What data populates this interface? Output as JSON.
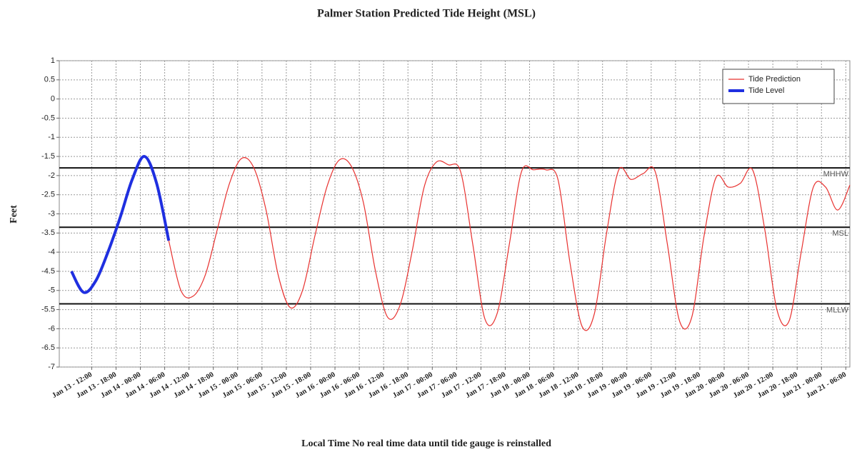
{
  "chart_data": {
    "type": "line",
    "title": "Palmer Station Predicted Tide Height (MSL)",
    "x_label": "Local Time No real time data until tide gauge is reinstalled",
    "y_label": "Feet",
    "x": [
      "Jan 13 - 07:00",
      "Jan 13 - 10:00",
      "Jan 13 - 13:00",
      "Jan 13 - 16:00",
      "Jan 13 - 19:00",
      "Jan 13 - 22:00",
      "Jan 14 - 01:00",
      "Jan 14 - 04:00",
      "Jan 14 - 07:00",
      "Jan 14 - 10:00",
      "Jan 14 - 13:00",
      "Jan 14 - 16:00",
      "Jan 14 - 19:00",
      "Jan 14 - 22:00",
      "Jan 15 - 01:00",
      "Jan 15 - 04:00",
      "Jan 15 - 07:00",
      "Jan 15 - 10:00",
      "Jan 15 - 13:00",
      "Jan 15 - 16:00",
      "Jan 15 - 19:00",
      "Jan 15 - 22:00",
      "Jan 16 - 01:00",
      "Jan 16 - 04:00",
      "Jan 16 - 07:00",
      "Jan 16 - 10:00",
      "Jan 16 - 13:00",
      "Jan 16 - 16:00",
      "Jan 16 - 19:00",
      "Jan 16 - 22:00",
      "Jan 17 - 01:00",
      "Jan 17 - 04:00",
      "Jan 17 - 07:00",
      "Jan 17 - 10:00",
      "Jan 17 - 13:00",
      "Jan 17 - 16:00",
      "Jan 17 - 19:00",
      "Jan 17 - 22:00",
      "Jan 18 - 01:00",
      "Jan 18 - 04:00",
      "Jan 18 - 07:00",
      "Jan 18 - 10:00",
      "Jan 18 - 13:00",
      "Jan 18 - 16:00",
      "Jan 18 - 19:00",
      "Jan 18 - 22:00",
      "Jan 19 - 01:00",
      "Jan 19 - 04:00",
      "Jan 19 - 07:00",
      "Jan 19 - 10:00",
      "Jan 19 - 13:00",
      "Jan 19 - 16:00",
      "Jan 19 - 19:00",
      "Jan 19 - 22:00",
      "Jan 20 - 01:00",
      "Jan 20 - 04:00",
      "Jan 20 - 07:00",
      "Jan 20 - 10:00",
      "Jan 20 - 13:00",
      "Jan 20 - 16:00",
      "Jan 20 - 19:00",
      "Jan 20 - 22:00",
      "Jan 21 - 01:00",
      "Jan 21 - 04:00",
      "Jan 21 - 07:00"
    ],
    "series": [
      {
        "name": "Tide Prediction",
        "color": "#e8312f",
        "width": 1.2,
        "values": [
          null,
          null,
          null,
          null,
          null,
          null,
          null,
          null,
          -3.7,
          -5.0,
          -5.15,
          -4.6,
          -3.4,
          -2.2,
          -1.55,
          -1.8,
          -2.9,
          -4.6,
          -5.45,
          -5.0,
          -3.6,
          -2.3,
          -1.6,
          -1.75,
          -2.7,
          -4.5,
          -5.7,
          -5.4,
          -4.0,
          -2.3,
          -1.65,
          -1.72,
          -1.9,
          -3.8,
          -5.75,
          -5.6,
          -3.8,
          -1.9,
          -1.85,
          -1.85,
          -2.1,
          -4.3,
          -5.95,
          -5.6,
          -3.5,
          -1.85,
          -2.1,
          -1.95,
          -1.9,
          -3.8,
          -5.8,
          -5.7,
          -3.6,
          -2.05,
          -2.3,
          -2.2,
          -1.85,
          -3.4,
          -5.5,
          -5.8,
          -4.0,
          -2.3,
          -2.3,
          -2.9,
          -2.25
        ]
      },
      {
        "name": "Tide Level",
        "color": "#1f2fe0",
        "width": 4,
        "values": [
          -4.5,
          -5.05,
          -4.75,
          -4.0,
          -3.1,
          -2.1,
          -1.5,
          -2.2,
          -3.7,
          null,
          null,
          null,
          null,
          null,
          null,
          null,
          null,
          null,
          null,
          null,
          null,
          null,
          null,
          null,
          null,
          null,
          null,
          null,
          null,
          null,
          null,
          null,
          null,
          null,
          null,
          null,
          null,
          null,
          null,
          null,
          null,
          null,
          null,
          null,
          null,
          null,
          null,
          null,
          null,
          null,
          null,
          null,
          null,
          null,
          null,
          null,
          null,
          null,
          null,
          null,
          null,
          null,
          null,
          null,
          null
        ]
      }
    ],
    "reference_lines": [
      {
        "label": "MHHW",
        "value": -1.8
      },
      {
        "label": "MSL",
        "value": -3.35
      },
      {
        "label": "MLLW",
        "value": -5.35
      }
    ],
    "xlim": [
      "Jan 13 - 04:00",
      "Jan 21 - 07:00"
    ],
    "xticks": [
      "Jan 13 - 12:00",
      "Jan 13 - 18:00",
      "Jan 14 - 00:00",
      "Jan 14 - 06:00",
      "Jan 14 - 12:00",
      "Jan 14 - 18:00",
      "Jan 15 - 00:00",
      "Jan 15 - 06:00",
      "Jan 15 - 12:00",
      "Jan 15 - 18:00",
      "Jan 16 - 00:00",
      "Jan 16 - 06:00",
      "Jan 16 - 12:00",
      "Jan 16 - 18:00",
      "Jan 17 - 00:00",
      "Jan 17 - 06:00",
      "Jan 17 - 12:00",
      "Jan 17 - 18:00",
      "Jan 18 - 00:00",
      "Jan 18 - 06:00",
      "Jan 18 - 12:00",
      "Jan 18 - 18:00",
      "Jan 19 - 00:00",
      "Jan 19 - 06:00",
      "Jan 19 - 12:00",
      "Jan 19 - 18:00",
      "Jan 20 - 00:00",
      "Jan 20 - 06:00",
      "Jan 20 - 12:00",
      "Jan 20 - 18:00",
      "Jan 21 - 00:00",
      "Jan 21 - 06:00"
    ],
    "ylim": [
      -7,
      1
    ],
    "yticks": [
      1,
      0.5,
      0,
      -0.5,
      -1,
      -1.5,
      -2,
      -2.5,
      -3,
      -3.5,
      -4,
      -4.5,
      -5,
      -5.5,
      -6,
      -6.5,
      -7
    ],
    "grid": true,
    "legend": "top-right"
  }
}
